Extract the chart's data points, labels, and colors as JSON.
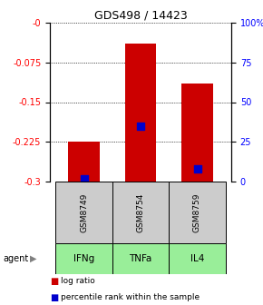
{
  "title": "GDS498 / 14423",
  "samples": [
    "GSM8749",
    "GSM8754",
    "GSM8759"
  ],
  "agents": [
    "IFNg",
    "TNFa",
    "IL4"
  ],
  "log_ratios": [
    -0.225,
    -0.04,
    -0.115
  ],
  "percentile_ranks": [
    0.02,
    0.35,
    0.08
  ],
  "bar_color": "#cc0000",
  "blue_color": "#0000cc",
  "ylim_left": [
    -0.3,
    0.0
  ],
  "ylim_right": [
    0.0,
    1.0
  ],
  "yticks_left": [
    0.0,
    -0.075,
    -0.15,
    -0.225,
    -0.3
  ],
  "yticks_right": [
    1.0,
    0.75,
    0.5,
    0.25,
    0.0
  ],
  "ytick_labels_left": [
    "-0",
    "-0.075",
    "-0.15",
    "-0.225",
    "-0.3"
  ],
  "ytick_labels_right": [
    "100%",
    "75",
    "50",
    "25",
    "0"
  ],
  "agent_color": "#99ee99",
  "sample_box_color": "#cccccc",
  "bar_width": 0.55,
  "blue_square_size": 30,
  "bg_color": "#ffffff"
}
